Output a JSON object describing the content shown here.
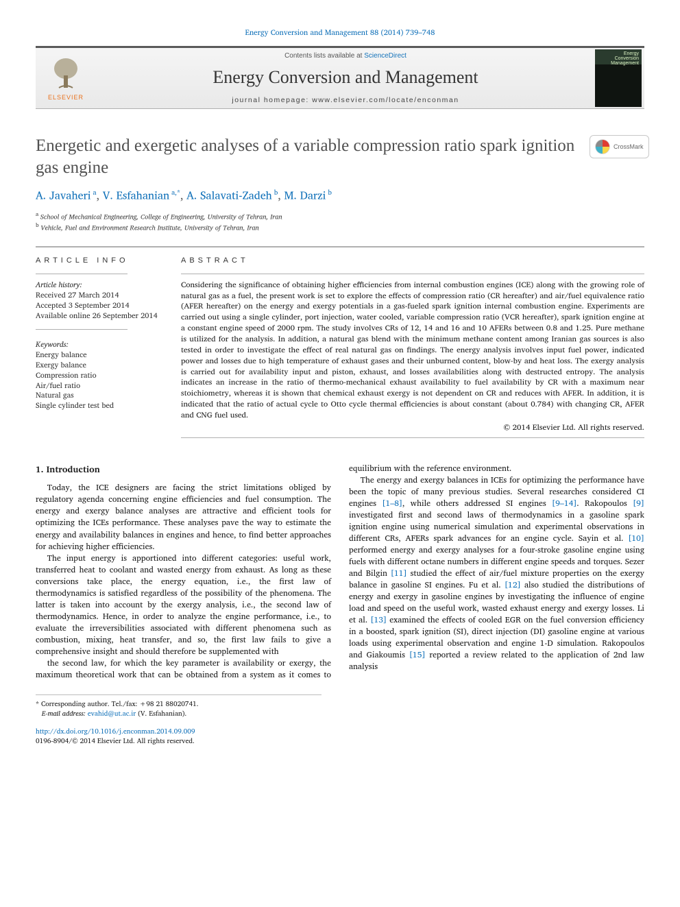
{
  "top_link": {
    "text": "Energy Conversion and Management 88 (2014) 739–748",
    "href": "#"
  },
  "header": {
    "contents_prefix": "Contents lists available at ",
    "contents_link": "ScienceDirect",
    "journal": "Energy Conversion and Management",
    "homepage": "journal homepage: www.elsevier.com/locate/enconman",
    "elsevier_label": "ELSEVIER",
    "cover_title_line1": "Energy",
    "cover_title_line2": "Conversion",
    "cover_title_line3": "Management"
  },
  "crossmark_label": "CrossMark",
  "title": "Energetic and exergetic analyses of a variable compression ratio spark ignition gas engine",
  "authors_html_parts": [
    {
      "name": "A. Javaheri",
      "aff": "a"
    },
    {
      "name": "V. Esfahanian",
      "aff": "a,*",
      "corr": true
    },
    {
      "name": "A. Salavati-Zadeh",
      "aff": "b"
    },
    {
      "name": "M. Darzi",
      "aff": "b"
    }
  ],
  "affiliations": [
    {
      "marker": "a",
      "text": "School of Mechanical Engineering, College of Engineering, University of Tehran, Iran"
    },
    {
      "marker": "b",
      "text": "Vehicle, Fuel and Environment Research Institute, University of Tehran, Iran"
    }
  ],
  "article_info": {
    "heading": "ARTICLE INFO",
    "history_label": "Article history:",
    "received": "Received 27 March 2014",
    "accepted": "Accepted 3 September 2014",
    "online": "Available online 26 September 2014",
    "keywords_label": "Keywords:",
    "keywords": [
      "Energy balance",
      "Exergy balance",
      "Compression ratio",
      "Air/fuel ratio",
      "Natural gas",
      "Single cylinder test bed"
    ]
  },
  "abstract": {
    "heading": "ABSTRACT",
    "text": "Considering the significance of obtaining higher efficiencies from internal combustion engines (ICE) along with the growing role of natural gas as a fuel, the present work is set to explore the effects of compression ratio (CR hereafter) and air/fuel equivalence ratio (AFER hereafter) on the energy and exergy potentials in a gas-fueled spark ignition internal combustion engine. Experiments are carried out using a single cylinder, port injection, water cooled, variable compression ratio (VCR hereafter), spark ignition engine at a constant engine speed of 2000 rpm. The study involves CRs of 12, 14 and 16 and 10 AFERs between 0.8 and 1.25. Pure methane is utilized for the analysis. In addition, a natural gas blend with the minimum methane content among Iranian gas sources is also tested in order to investigate the effect of real natural gas on findings. The energy analysis involves input fuel power, indicated power and losses due to high temperature of exhaust gases and their unburned content, blow-by and heat loss. The exergy analysis is carried out for availability input and piston, exhaust, and losses availabilities along with destructed entropy. The analysis indicates an increase in the ratio of thermo-mechanical exhaust availability to fuel availability by CR with a maximum near stoichiometry, whereas it is shown that chemical exhaust exergy is not dependent on CR and reduces with AFER. In addition, it is indicated that the ratio of actual cycle to Otto cycle thermal efficiencies is about constant (about 0.784) with changing CR, AFER and CNG fuel used.",
    "copyright": "© 2014 Elsevier Ltd. All rights reserved."
  },
  "body": {
    "section_heading": "1. Introduction",
    "paragraphs": [
      "Today, the ICE designers are facing the strict limitations obliged by regulatory agenda concerning engine efficiencies and fuel consumption. The energy and exergy balance analyses are attractive and efficient tools for optimizing the ICEs performance. These analyses pave the way to estimate the energy and availability balances in engines and hence, to find better approaches for achieving higher efficiencies.",
      "The input energy is apportioned into different categories: useful work, transferred heat to coolant and wasted energy from exhaust. As long as these conversions take place, the energy equation, i.e., the first law of thermodynamics is satisfied regardless of the possibility of the phenomena. The latter is taken into account by the exergy analysis, i.e., the second law of thermodynamics. Hence, in order to analyze the engine performance, i.e., to evaluate the irreversibilities associated with different phenomena such as combustion, mixing, heat transfer, and so, the first law fails to give a comprehensive insight and should therefore be supplemented with",
      "the second law, for which the key parameter is availability or exergy, the maximum theoretical work that can be obtained from a system as it comes to equilibrium with the reference environment.",
      "The energy and exergy balances in ICEs for optimizing the performance have been the topic of many previous studies. Several researches considered CI engines [1–8], while others addressed SI engines [9–14]. Rakopoulos [9] investigated first and second laws of thermodynamics in a gasoline spark ignition engine using numerical simulation and experimental observations in different CRs, AFERs spark advances for an engine cycle. Sayin et al. [10] performed energy and exergy analyses for a four-stroke gasoline engine using fuels with different octane numbers in different engine speeds and torques. Sezer and Bilgin [11] studied the effect of air/fuel mixture properties on the exergy balance in gasoline SI engines. Fu et al. [12] also studied the distributions of energy and exergy in gasoline engines by investigating the influence of engine load and speed on the useful work, wasted exhaust energy and exergy losses. Li et al. [13] examined the effects of cooled EGR on the fuel conversion efficiency in a boosted, spark ignition (SI), direct injection (DI) gasoline engine at various loads using experimental observation and engine 1-D simulation. Rakopoulos and Giakoumis [15] reported a review related to the application of 2nd law analysis"
    ],
    "citation_links": [
      "[1–8]",
      "[9–14]",
      "[9]",
      "[10]",
      "[11]",
      "[12]",
      "[13]",
      "[15]"
    ]
  },
  "footer": {
    "corr_marker": "*",
    "corr_text": "Corresponding author. Tel./fax: +98 21 88020741.",
    "email_label": "E-mail address:",
    "email": "evahid@ut.ac.ir",
    "email_person": "(V. Esfahanian).",
    "doi": "http://dx.doi.org/10.1016/j.enconman.2014.09.009",
    "issn_line": "0196-8904/© 2014 Elsevier Ltd. All rights reserved."
  },
  "colors": {
    "link": "#1171b9",
    "elsevier_orange": "#e9711c",
    "rule": "#b0b0b0",
    "text": "#1a1a1a"
  }
}
